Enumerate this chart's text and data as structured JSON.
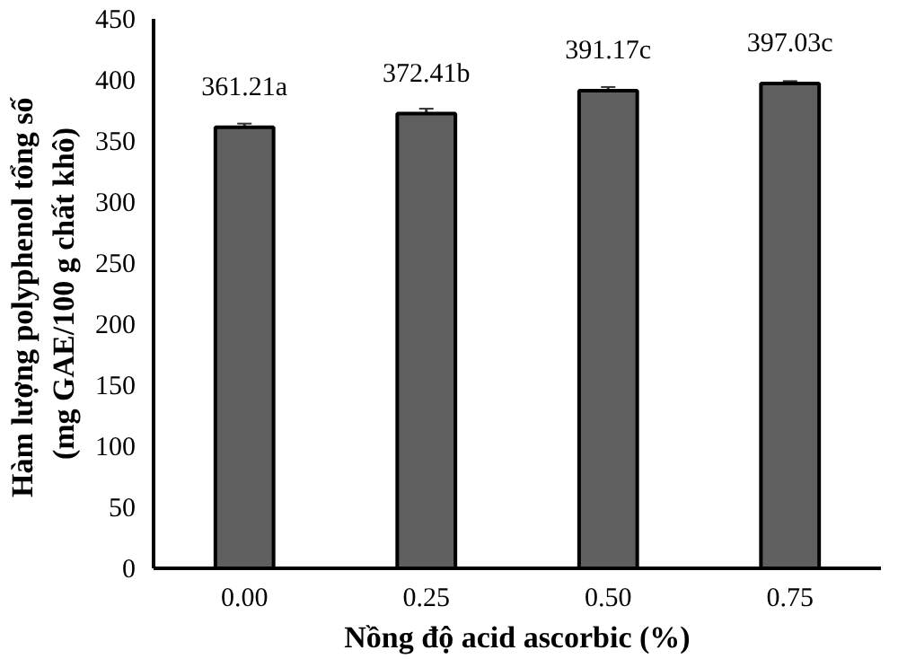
{
  "chart_data": {
    "type": "bar",
    "xlabel": "Nồng độ acid ascorbic (%)",
    "ylabel": "Hàm lượng polyphenol tổng  số\n(mg GAE/100 g chất khô)",
    "categories": [
      "0.00",
      "0.25",
      "0.50",
      "0.75"
    ],
    "values": [
      361.21,
      372.41,
      391.17,
      397.03
    ],
    "errors": [
      3,
      4,
      3,
      2
    ],
    "value_labels": [
      "361.21a",
      "372.41b",
      "391.17c",
      "397.03c"
    ],
    "color": "#5f5f5f",
    "ylim": [
      0,
      450
    ],
    "yticks": [
      0,
      50,
      100,
      150,
      200,
      250,
      300,
      350,
      400,
      450
    ],
    "grid": false
  }
}
